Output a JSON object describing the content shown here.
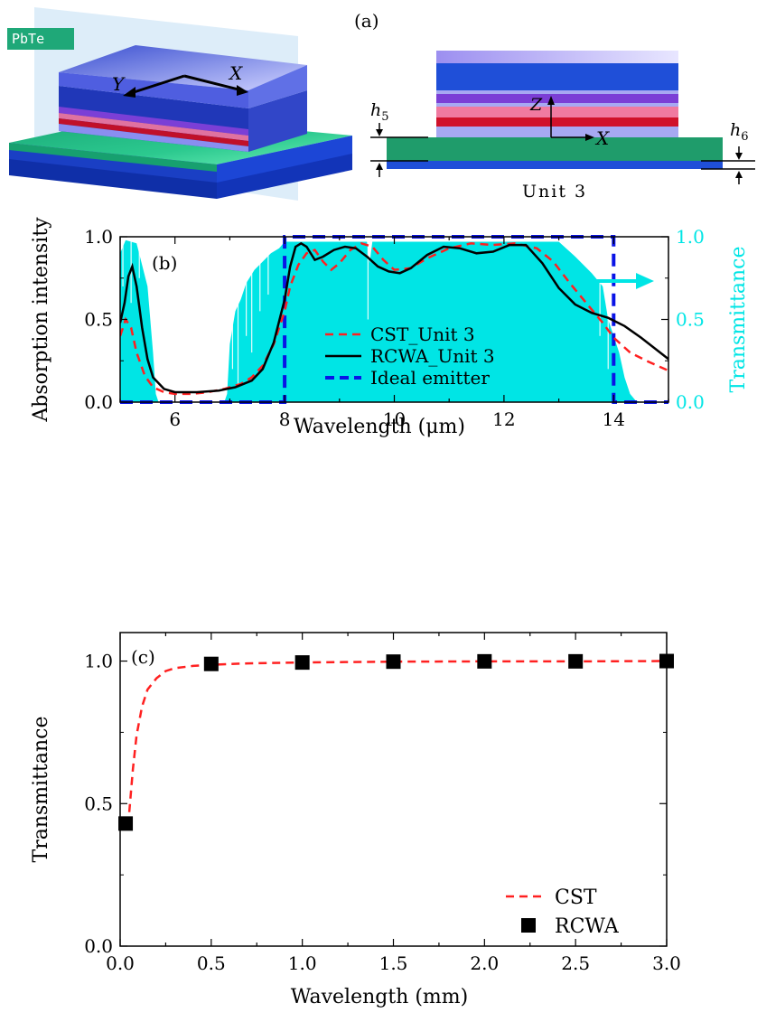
{
  "panel_a": {
    "label": "(a)",
    "badge": "PbTe",
    "axis_y": "Y",
    "axis_x": "X",
    "axis_z": "Z",
    "axis_x2": "X",
    "h5_base": "h",
    "h5_sub": "5",
    "h6_base": "h",
    "h6_sub": "6",
    "unit_label": "Unit 3",
    "colors": {
      "green": "#1f9c6b",
      "blue": "#1f4fd8",
      "purple": "#7b3fd6",
      "red": "#d0122a",
      "pink": "#f07aa0",
      "lavender": "#9aa0f0",
      "badge": "#1fa878"
    }
  },
  "chart_data": [
    {
      "type": "line",
      "panel_label": "(b)",
      "xlabel": "Wavelength (μm)",
      "ylabel": "Absorption intensity",
      "ylabel_right": "Transmittance",
      "xlim": [
        5,
        15
      ],
      "ylim": [
        0,
        1
      ],
      "ylim_right": [
        0,
        1
      ],
      "xticks": [
        6,
        8,
        10,
        12,
        14
      ],
      "yticks": [
        "0.0",
        "0.5",
        "1.0"
      ],
      "yticks_right": [
        "0.0",
        "0.5",
        "1.0"
      ],
      "legend_position": "center",
      "colors": {
        "cst": "#ff2020",
        "rcwa": "#000000",
        "ideal": "#0a14e6",
        "trans": "#00e5e5"
      },
      "series": [
        {
          "name": "CST_Unit 3",
          "style": "dashed",
          "x": [
            5.0,
            5.1,
            5.2,
            5.3,
            5.45,
            5.6,
            5.8,
            6.0,
            6.3,
            6.6,
            6.9,
            7.2,
            7.4,
            7.6,
            7.8,
            8.0,
            8.1,
            8.25,
            8.4,
            8.55,
            8.7,
            8.85,
            9.0,
            9.2,
            9.4,
            9.6,
            9.8,
            10.0,
            10.3,
            10.6,
            11.0,
            11.4,
            11.8,
            12.2,
            12.6,
            12.9,
            13.2,
            13.5,
            13.8,
            14.0,
            14.3,
            14.6,
            15.0
          ],
          "y": [
            0.4,
            0.5,
            0.45,
            0.3,
            0.16,
            0.09,
            0.06,
            0.05,
            0.05,
            0.06,
            0.08,
            0.11,
            0.15,
            0.22,
            0.35,
            0.55,
            0.7,
            0.83,
            0.9,
            0.92,
            0.85,
            0.8,
            0.84,
            0.92,
            0.96,
            0.94,
            0.86,
            0.8,
            0.81,
            0.87,
            0.93,
            0.96,
            0.95,
            0.96,
            0.93,
            0.85,
            0.72,
            0.6,
            0.48,
            0.39,
            0.3,
            0.25,
            0.19
          ]
        },
        {
          "name": "RCWA_Unit 3",
          "style": "solid",
          "x": [
            5.0,
            5.08,
            5.15,
            5.22,
            5.3,
            5.4,
            5.5,
            5.6,
            5.8,
            6.0,
            6.4,
            6.8,
            7.1,
            7.4,
            7.6,
            7.8,
            8.0,
            8.1,
            8.2,
            8.3,
            8.4,
            8.55,
            8.7,
            8.9,
            9.1,
            9.3,
            9.5,
            9.7,
            9.9,
            10.1,
            10.3,
            10.6,
            10.9,
            11.2,
            11.5,
            11.8,
            12.1,
            12.4,
            12.7,
            13.0,
            13.3,
            13.6,
            13.9,
            14.2,
            14.5,
            15.0
          ],
          "y": [
            0.48,
            0.6,
            0.76,
            0.82,
            0.7,
            0.45,
            0.26,
            0.15,
            0.08,
            0.06,
            0.06,
            0.07,
            0.09,
            0.13,
            0.2,
            0.36,
            0.62,
            0.82,
            0.94,
            0.96,
            0.94,
            0.86,
            0.88,
            0.92,
            0.94,
            0.93,
            0.88,
            0.82,
            0.79,
            0.78,
            0.81,
            0.89,
            0.94,
            0.93,
            0.9,
            0.91,
            0.95,
            0.95,
            0.84,
            0.69,
            0.59,
            0.54,
            0.51,
            0.46,
            0.39,
            0.26
          ]
        },
        {
          "name": "Ideal emitter",
          "style": "dashed-thick",
          "x": [
            5.0,
            8.0,
            8.0,
            14.0,
            14.0,
            15.0
          ],
          "y": [
            0.0,
            0.0,
            1.0,
            1.0,
            0.0,
            0.0
          ]
        },
        {
          "name": "",
          "style": "fill",
          "axis": "right",
          "x": [
            5.0,
            5.1,
            5.3,
            5.5,
            5.6,
            5.65,
            5.7,
            6.9,
            6.95,
            7.0,
            7.1,
            7.2,
            7.3,
            7.45,
            7.6,
            7.75,
            7.9,
            8.0,
            8.1,
            8.2,
            9.5,
            9.55,
            9.6,
            9.7,
            13.0,
            13.3,
            13.6,
            13.8,
            13.9,
            14.0,
            14.1,
            14.2,
            14.3,
            14.4,
            14.5,
            15.0
          ],
          "y": [
            0.9,
            0.98,
            0.96,
            0.7,
            0.3,
            0.05,
            0.0,
            0.0,
            0.05,
            0.35,
            0.55,
            0.62,
            0.72,
            0.8,
            0.85,
            0.9,
            0.93,
            0.97,
            0.97,
            0.97,
            0.97,
            0.84,
            0.97,
            0.97,
            0.97,
            0.88,
            0.78,
            0.7,
            0.5,
            0.4,
            0.3,
            0.15,
            0.05,
            0.01,
            0.0,
            0.0
          ]
        }
      ]
    },
    {
      "type": "scatter",
      "panel_label": "(c)",
      "xlabel": "Wavelength (mm)",
      "ylabel": "Transmittance",
      "xlim": [
        0,
        3
      ],
      "ylim": [
        0,
        1.1
      ],
      "xticks": [
        "0.0",
        "0.5",
        "1.0",
        "1.5",
        "2.0",
        "2.5",
        "3.0"
      ],
      "yticks": [
        "0.0",
        "0.5",
        "1.0"
      ],
      "legend_position": "bottom-right",
      "colors": {
        "cst": "#ff2020",
        "rcwa": "#000000"
      },
      "series": [
        {
          "name": "CST",
          "style": "dashed",
          "x": [
            0.05,
            0.07,
            0.09,
            0.12,
            0.15,
            0.2,
            0.25,
            0.3,
            0.4,
            0.5,
            0.7,
            1.0,
            1.5,
            2.0,
            2.5,
            3.0
          ],
          "y": [
            0.47,
            0.62,
            0.74,
            0.84,
            0.9,
            0.94,
            0.965,
            0.975,
            0.983,
            0.987,
            0.992,
            0.995,
            0.998,
            0.999,
            0.999,
            1.0
          ]
        },
        {
          "name": "RCWA",
          "style": "square-marker",
          "x": [
            0.03,
            0.5,
            1.0,
            1.5,
            2.0,
            2.5,
            3.0
          ],
          "y": [
            0.43,
            0.99,
            0.995,
            0.998,
            0.999,
            0.999,
            1.0
          ]
        }
      ]
    }
  ]
}
